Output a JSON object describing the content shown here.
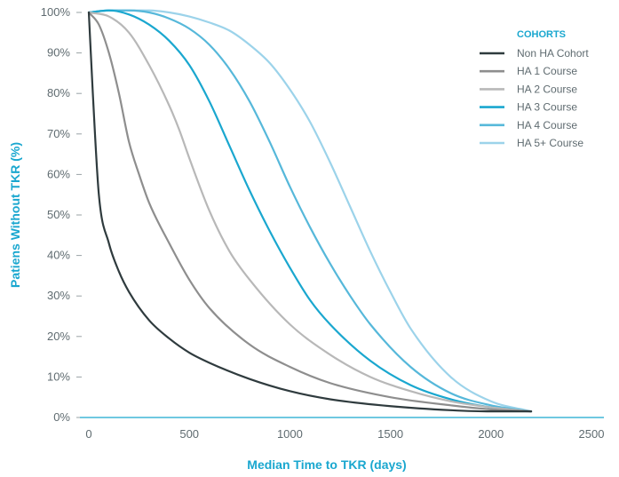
{
  "chart_data": {
    "type": "line",
    "title": "",
    "xlabel": "Median Time to TKR (days)",
    "ylabel": "Patiens Without TKR (%)",
    "xlim": [
      0,
      2500
    ],
    "ylim": [
      0,
      100
    ],
    "xticks": [
      0,
      500,
      1000,
      1500,
      2000,
      2500
    ],
    "yticks": [
      0,
      10,
      20,
      30,
      40,
      50,
      60,
      70,
      80,
      90,
      100
    ],
    "xtick_labels": [
      "0",
      "500",
      "1000",
      "1500",
      "2000",
      "2500"
    ],
    "ytick_labels": [
      "0%",
      "10%",
      "20%",
      "30%",
      "40%",
      "50%",
      "60%",
      "70%",
      "80%",
      "90%",
      "100%"
    ],
    "grid": false,
    "legend": {
      "title": "COHORTS",
      "placement": "top-right"
    },
    "series": [
      {
        "name": "Non HA Cohort",
        "color": "#2f3b3e",
        "x": [
          0,
          20,
          50,
          100,
          150,
          200,
          300,
          400,
          500,
          600,
          800,
          1000,
          1200,
          1500,
          1800,
          2000,
          2200
        ],
        "y": [
          100,
          80,
          55,
          43,
          36,
          31,
          24,
          19.5,
          16,
          13.5,
          9.5,
          6.5,
          4.5,
          2.8,
          1.8,
          1.5,
          1.5
        ]
      },
      {
        "name": "HA 1 Course",
        "color": "#8e8e8e",
        "x": [
          0,
          50,
          100,
          150,
          200,
          250,
          300,
          400,
          500,
          600,
          800,
          1000,
          1200,
          1500,
          1800,
          2000,
          2200
        ],
        "y": [
          100,
          97,
          90,
          80,
          68,
          60,
          53,
          43,
          34,
          27,
          18,
          12.5,
          8.5,
          5,
          3,
          2,
          1.5
        ]
      },
      {
        "name": "HA 2 Course",
        "color": "#b8b8b8",
        "x": [
          0,
          100,
          200,
          300,
          400,
          450,
          500,
          600,
          700,
          800,
          1000,
          1200,
          1400,
          1600,
          1800,
          2000,
          2200
        ],
        "y": [
          100,
          99,
          95,
          87,
          77,
          71,
          64,
          51,
          41,
          34,
          23,
          15.5,
          10,
          6.5,
          4,
          2.5,
          1.5
        ]
      },
      {
        "name": "HA 3 Course",
        "color": "#1aa7cf",
        "x": [
          0,
          100,
          200,
          300,
          400,
          500,
          600,
          700,
          800,
          900,
          1000,
          1100,
          1200,
          1400,
          1600,
          1800,
          2000,
          2200
        ],
        "y": [
          100,
          100.5,
          99.5,
          97,
          93,
          87,
          78,
          67,
          56,
          46,
          37,
          29,
          23,
          14,
          8,
          4.5,
          2.5,
          1.5
        ]
      },
      {
        "name": "HA 4 Course",
        "color": "#56b8da",
        "x": [
          0,
          100,
          200,
          300,
          400,
          500,
          600,
          700,
          800,
          900,
          1000,
          1100,
          1200,
          1300,
          1400,
          1600,
          1800,
          2000,
          2200
        ],
        "y": [
          100,
          100.5,
          100.5,
          100,
          98.5,
          96,
          92,
          86,
          78,
          68,
          57,
          47,
          38,
          30,
          23,
          12.5,
          6,
          3,
          1.5
        ]
      },
      {
        "name": "HA 5+ Course",
        "color": "#9cd3ea",
        "x": [
          0,
          100,
          200,
          300,
          400,
          500,
          600,
          700,
          800,
          900,
          1000,
          1100,
          1200,
          1300,
          1400,
          1500,
          1600,
          1800,
          2000,
          2200
        ],
        "y": [
          100,
          100.5,
          100.5,
          100.5,
          100,
          99,
          97.5,
          95.5,
          92,
          87.5,
          81,
          73,
          63,
          52,
          41,
          31,
          22,
          10,
          4,
          1.5
        ]
      }
    ]
  }
}
